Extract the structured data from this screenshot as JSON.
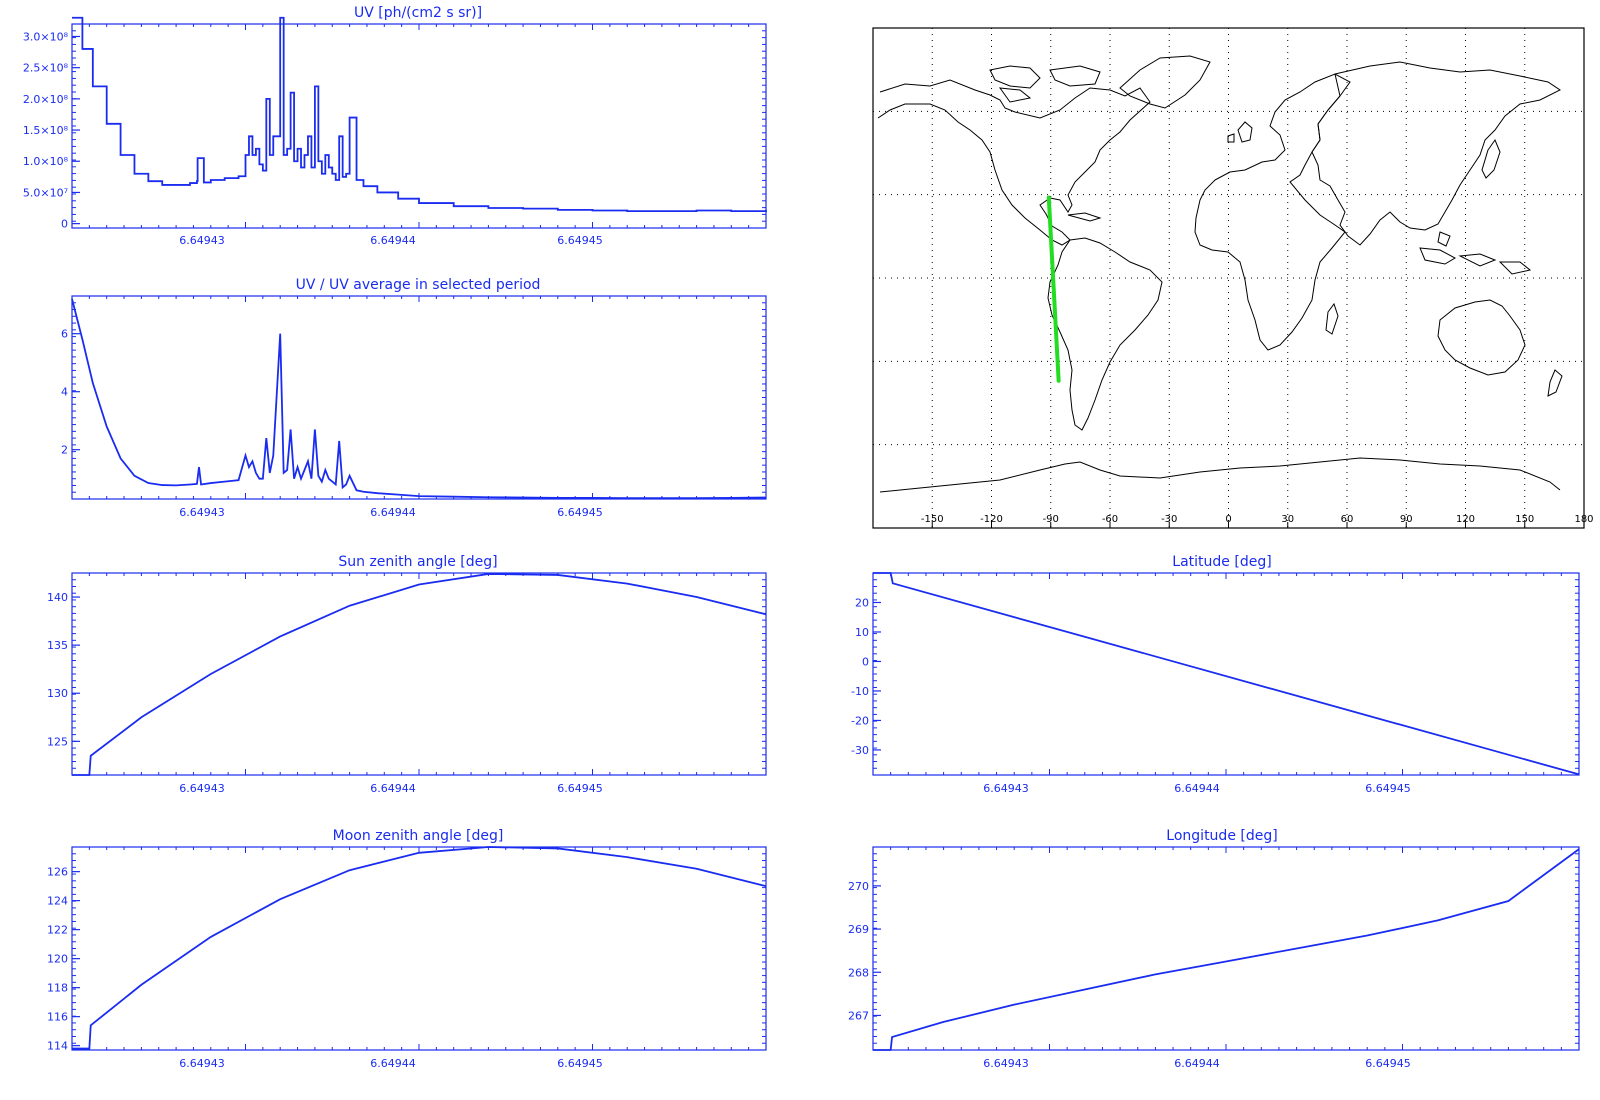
{
  "colors": {
    "plot": "#1a2cf0",
    "track": "#22dd22",
    "map": "#000000"
  },
  "chart_data": [
    {
      "id": "uv",
      "type": "line",
      "title": "UV [ph/(cm2 s sr)]",
      "x_ticks": [
        "6.64943",
        "6.64944",
        "6.64945"
      ],
      "y_ticks": [
        "0",
        "5.0×10⁷",
        "1.0×10⁸",
        "1.5×10⁸",
        "2.0×10⁸",
        "2.5×10⁸",
        "3.0×10⁸"
      ],
      "y_tick_values": [
        0,
        50000000,
        100000000,
        150000000,
        200000000,
        250000000,
        300000000
      ],
      "ylim": [
        -7000000,
        320000000
      ],
      "x": [
        0.0,
        0.015,
        0.03,
        0.05,
        0.07,
        0.09,
        0.11,
        0.13,
        0.15,
        0.17,
        0.18,
        0.181,
        0.19,
        0.2,
        0.22,
        0.24,
        0.25,
        0.255,
        0.26,
        0.265,
        0.27,
        0.275,
        0.28,
        0.285,
        0.29,
        0.3,
        0.305,
        0.31,
        0.315,
        0.32,
        0.325,
        0.33,
        0.335,
        0.34,
        0.345,
        0.35,
        0.355,
        0.36,
        0.365,
        0.37,
        0.375,
        0.38,
        0.385,
        0.39,
        0.395,
        0.4,
        0.41,
        0.42,
        0.44,
        0.47,
        0.5,
        0.55,
        0.6,
        0.65,
        0.7,
        0.75,
        0.8,
        0.85,
        0.9,
        0.95,
        1.0
      ],
      "y": [
        330000000,
        280000000,
        220000000,
        160000000,
        110000000,
        80000000,
        68000000,
        62000000,
        62000000,
        65000000,
        68000000,
        105000000,
        66000000,
        70000000,
        73000000,
        76000000,
        110000000,
        140000000,
        110000000,
        120000000,
        95000000,
        85000000,
        200000000,
        110000000,
        140000000,
        330000000,
        110000000,
        120000000,
        210000000,
        100000000,
        120000000,
        90000000,
        110000000,
        140000000,
        90000000,
        220000000,
        100000000,
        80000000,
        110000000,
        90000000,
        80000000,
        70000000,
        140000000,
        75000000,
        80000000,
        170000000,
        70000000,
        60000000,
        50000000,
        40000000,
        33000000,
        28000000,
        25000000,
        24000000,
        22000000,
        21000000,
        20000000,
        20000000,
        21000000,
        20000000,
        22000000
      ]
    },
    {
      "id": "uvratio",
      "type": "line",
      "title": "UV / UV average in selected period",
      "x_ticks": [
        "6.64943",
        "6.64944",
        "6.64945"
      ],
      "y_ticks": [
        "2",
        "4",
        "6"
      ],
      "y_tick_values": [
        2,
        4,
        6
      ],
      "ylim": [
        0.3,
        7.3
      ],
      "x": [
        0.0,
        0.015,
        0.03,
        0.05,
        0.07,
        0.09,
        0.11,
        0.13,
        0.15,
        0.17,
        0.18,
        0.183,
        0.186,
        0.2,
        0.22,
        0.24,
        0.25,
        0.255,
        0.26,
        0.265,
        0.27,
        0.275,
        0.28,
        0.285,
        0.29,
        0.3,
        0.305,
        0.31,
        0.315,
        0.32,
        0.325,
        0.33,
        0.335,
        0.34,
        0.345,
        0.35,
        0.355,
        0.36,
        0.365,
        0.37,
        0.375,
        0.38,
        0.385,
        0.39,
        0.395,
        0.4,
        0.41,
        0.42,
        0.44,
        0.47,
        0.5,
        0.55,
        0.6,
        0.65,
        0.7,
        0.75,
        0.8,
        0.85,
        0.9,
        0.95,
        1.0
      ],
      "y": [
        7.2,
        5.8,
        4.3,
        2.8,
        1.7,
        1.1,
        0.85,
        0.78,
        0.77,
        0.8,
        0.82,
        1.4,
        0.8,
        0.85,
        0.9,
        0.95,
        1.8,
        1.4,
        1.6,
        1.2,
        1.0,
        1.0,
        2.4,
        1.2,
        1.8,
        6.0,
        1.2,
        1.3,
        2.7,
        1.0,
        1.4,
        1.0,
        1.3,
        1.6,
        1.0,
        2.7,
        1.1,
        0.9,
        1.3,
        1.0,
        0.9,
        0.8,
        2.3,
        0.7,
        0.8,
        1.1,
        0.6,
        0.55,
        0.5,
        0.45,
        0.4,
        0.38,
        0.36,
        0.35,
        0.34,
        0.34,
        0.33,
        0.33,
        0.33,
        0.34,
        0.35
      ]
    },
    {
      "id": "sunzen",
      "type": "line",
      "title": "Sun zenith angle [deg]",
      "x_ticks": [
        "6.64943",
        "6.64944",
        "6.64945"
      ],
      "y_ticks": [
        "125",
        "130",
        "135",
        "140"
      ],
      "y_tick_values": [
        125,
        130,
        135,
        140
      ],
      "ylim": [
        121.5,
        142.5
      ],
      "x": [
        0.0,
        0.025,
        0.027,
        0.1,
        0.2,
        0.3,
        0.4,
        0.5,
        0.6,
        0.7,
        0.8,
        0.9,
        1.0
      ],
      "y": [
        121.5,
        121.5,
        123.5,
        127.5,
        132.0,
        135.9,
        139.1,
        141.3,
        142.4,
        142.3,
        141.4,
        140.0,
        138.2
      ]
    },
    {
      "id": "latitude",
      "type": "line",
      "title": "Latitude [deg]",
      "x_ticks": [
        "6.64943",
        "6.64944",
        "6.64945"
      ],
      "y_ticks": [
        "-30",
        "-20",
        "-10",
        "0",
        "10",
        "20"
      ],
      "y_tick_values": [
        -30,
        -20,
        -10,
        0,
        10,
        20
      ],
      "ylim": [
        -38.5,
        30.0
      ],
      "x": [
        0.0,
        0.025,
        0.028,
        1.0
      ],
      "y": [
        30.0,
        30.0,
        26.5,
        -38.3
      ]
    },
    {
      "id": "moonzen",
      "type": "line",
      "title": "Moon zenith angle [deg]",
      "x_ticks": [
        "6.64943",
        "6.64944",
        "6.64945"
      ],
      "y_ticks": [
        "114",
        "116",
        "118",
        "120",
        "122",
        "124",
        "126"
      ],
      "y_tick_values": [
        114,
        116,
        118,
        120,
        122,
        124,
        126
      ],
      "ylim": [
        113.7,
        127.7
      ],
      "x": [
        0.0,
        0.025,
        0.027,
        0.1,
        0.2,
        0.3,
        0.4,
        0.5,
        0.6,
        0.7,
        0.8,
        0.9,
        1.0
      ],
      "y": [
        113.8,
        113.8,
        115.4,
        118.2,
        121.5,
        124.1,
        126.1,
        127.3,
        127.7,
        127.6,
        127.0,
        126.2,
        125.0
      ]
    },
    {
      "id": "longitude",
      "type": "line",
      "title": "Longitude [deg]",
      "x_ticks": [
        "6.64943",
        "6.64944",
        "6.64945"
      ],
      "y_ticks": [
        "267",
        "268",
        "269",
        "270"
      ],
      "y_tick_values": [
        267,
        268,
        269,
        270
      ],
      "ylim": [
        266.2,
        270.9
      ],
      "x": [
        0.0,
        0.025,
        0.027,
        0.1,
        0.2,
        0.3,
        0.4,
        0.5,
        0.6,
        0.7,
        0.8,
        0.9,
        1.0
      ],
      "y": [
        266.2,
        266.2,
        266.5,
        266.85,
        267.25,
        267.6,
        267.95,
        268.25,
        268.55,
        268.85,
        269.2,
        269.65,
        270.85
      ]
    }
  ],
  "map": {
    "x_ticks": [
      "-150",
      "-120",
      "-90",
      "-60",
      "-30",
      "0",
      "30",
      "60",
      "90",
      "120",
      "150",
      "180"
    ],
    "x_tick_values": [
      -150,
      -120,
      -90,
      -60,
      -30,
      0,
      30,
      60,
      90,
      120,
      150,
      180
    ],
    "track": {
      "start": [
        -91,
        29
      ],
      "end": [
        -86,
        -37
      ]
    }
  }
}
